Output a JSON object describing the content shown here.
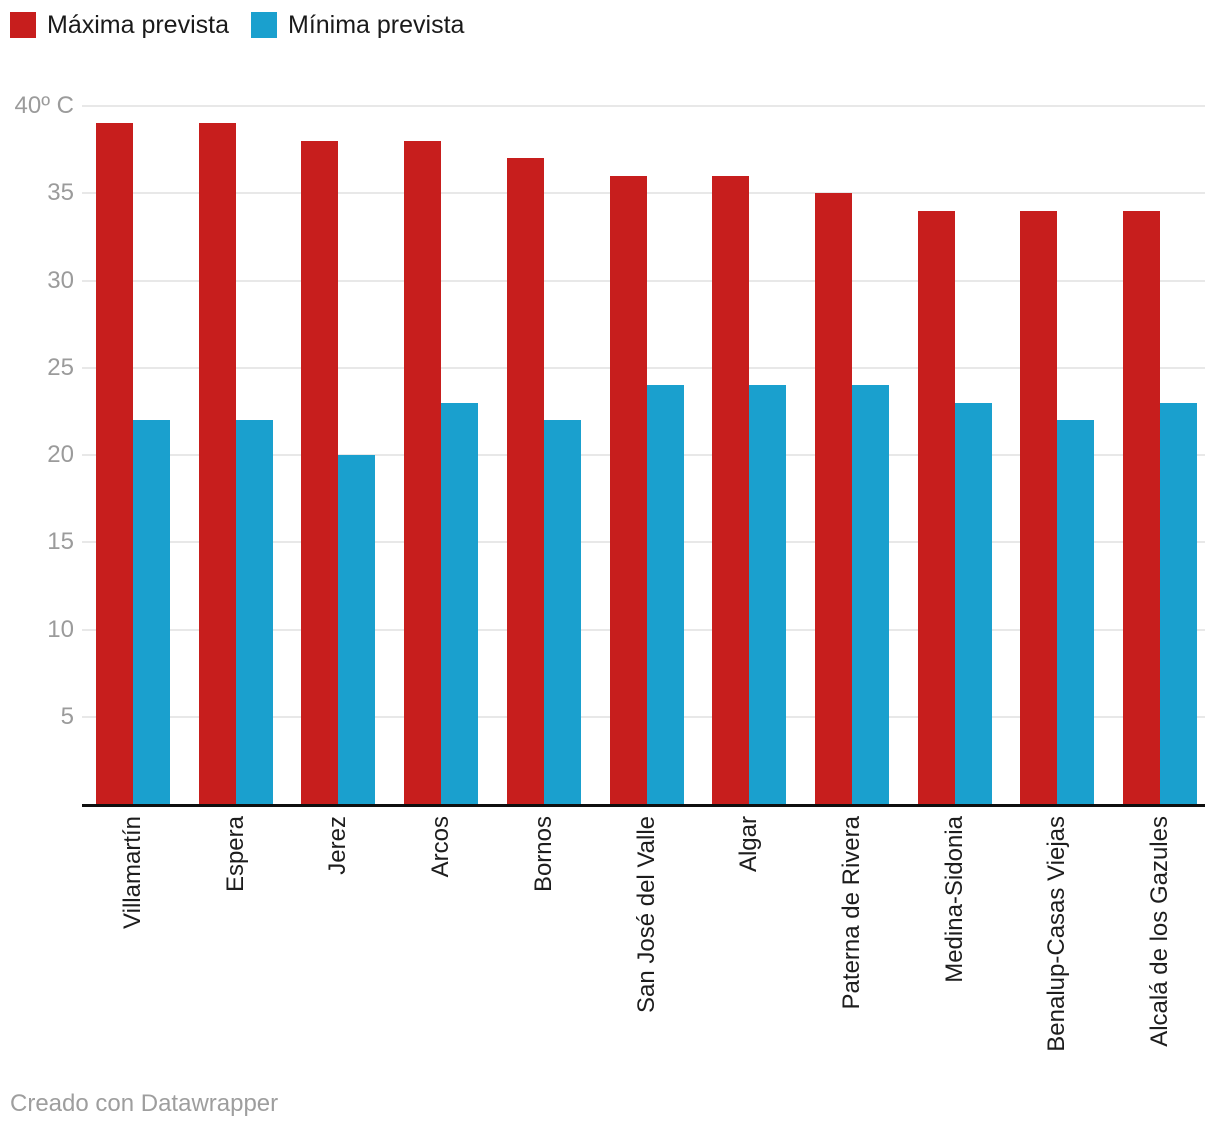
{
  "legend": {
    "items": [
      {
        "label": "Máxima prevista",
        "color": "#c71e1d"
      },
      {
        "label": "Mínima prevista",
        "color": "#1aa0ce"
      }
    ]
  },
  "footer": {
    "credit": "Creado con Datawrapper"
  },
  "chart_data": {
    "type": "bar",
    "categories": [
      "Villamartín",
      "Espera",
      "Jerez",
      "Arcos",
      "Bornos",
      "San José del Valle",
      "Algar",
      "Paterna de Rivera",
      "Medina-Sidonia",
      "Benalup-Casas Viejas",
      "Alcalá de los Gazules"
    ],
    "series": [
      {
        "name": "Máxima prevista",
        "color": "#c71e1d",
        "values": [
          39,
          39,
          38,
          38,
          37,
          36,
          36,
          35,
          34,
          34,
          34
        ]
      },
      {
        "name": "Mínima prevista",
        "color": "#1aa0ce",
        "values": [
          22,
          22,
          20,
          23,
          22,
          24,
          24,
          24,
          23,
          22,
          23
        ]
      }
    ],
    "title": "",
    "xlabel": "",
    "ylabel": "",
    "ylim": [
      0,
      40
    ],
    "yticks": [
      {
        "value": 5,
        "label": "5"
      },
      {
        "value": 10,
        "label": "10"
      },
      {
        "value": 15,
        "label": "15"
      },
      {
        "value": 20,
        "label": "20"
      },
      {
        "value": 25,
        "label": "25"
      },
      {
        "value": 30,
        "label": "30"
      },
      {
        "value": 35,
        "label": "35"
      },
      {
        "value": 40,
        "label": "40º C"
      }
    ],
    "grid": true,
    "legend_position": "top-left",
    "colors": {
      "grid": "#e8e8e8",
      "axis": "#0f0f0f",
      "ytick_text": "#9b9b9b",
      "xtick_text": "#1d1d1d",
      "footer_text": "#9e9e9e"
    }
  }
}
